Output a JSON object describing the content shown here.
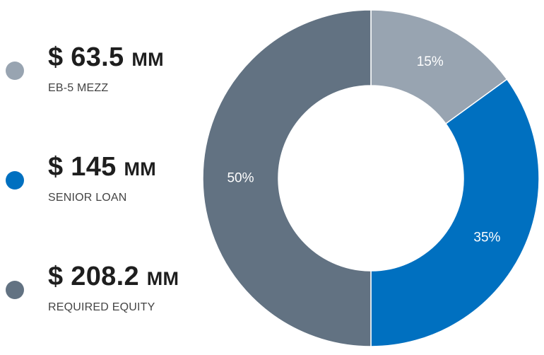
{
  "legend": [
    {
      "amount": "$ 63.5",
      "unit": "MM",
      "label": "EB-5 MEZZ"
    },
    {
      "amount": "$ 145",
      "unit": "MM",
      "label": "SENIOR LOAN"
    },
    {
      "amount": "$ 208.2",
      "unit": "MM",
      "label": "REQUIRED EQUITY"
    }
  ],
  "chart_data": {
    "type": "pie",
    "style": "donut",
    "categories": [
      "EB-5 MEZZ",
      "SENIOR LOAN",
      "REQUIRED EQUITY"
    ],
    "values": [
      15,
      35,
      50
    ],
    "labels": [
      "15%",
      "35%",
      "50%"
    ],
    "colors": [
      "#98a4b1",
      "#0070c0",
      "#627282"
    ],
    "start": "top",
    "direction": "clockwise"
  }
}
